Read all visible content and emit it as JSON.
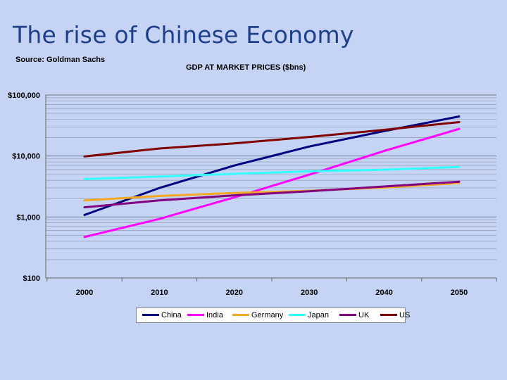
{
  "slide": {
    "title": "The rise of Chinese Economy",
    "source": "Source: Goldman Sachs"
  },
  "chart_data": {
    "type": "line",
    "title": "GDP AT MARKET PRICES ($bns)",
    "xlabel": "",
    "ylabel": "",
    "yscale": "log",
    "ylim": [
      100,
      100000
    ],
    "y_ticks": [
      100,
      1000,
      10000,
      100000
    ],
    "y_tick_labels": [
      "$100",
      "$1,000",
      "$10,000",
      "$100,000"
    ],
    "x": [
      2000,
      2010,
      2020,
      2030,
      2040,
      2050
    ],
    "x_tick_labels": [
      "2000",
      "2010",
      "2020",
      "2030",
      "2040",
      "2050"
    ],
    "grid": true,
    "legend_position": "bottom",
    "series": [
      {
        "name": "China",
        "color": "#000080",
        "values": [
          1080,
          2990,
          6980,
          14310,
          25610,
          44450
        ]
      },
      {
        "name": "India",
        "color": "#ff00ff",
        "values": [
          470,
          930,
          2100,
          4940,
          12100,
          27800
        ]
      },
      {
        "name": "Germany",
        "color": "#f5a623",
        "values": [
          1870,
          2210,
          2470,
          2690,
          3040,
          3600
        ]
      },
      {
        "name": "Japan",
        "color": "#33ffff",
        "values": [
          4180,
          4600,
          5110,
          5600,
          5960,
          6600
        ]
      },
      {
        "name": "UK",
        "color": "#800080",
        "values": [
          1440,
          1870,
          2260,
          2640,
          3160,
          3780
        ]
      },
      {
        "name": "US",
        "color": "#800000",
        "values": [
          9830,
          13270,
          16120,
          20510,
          26840,
          36000
        ]
      }
    ]
  }
}
